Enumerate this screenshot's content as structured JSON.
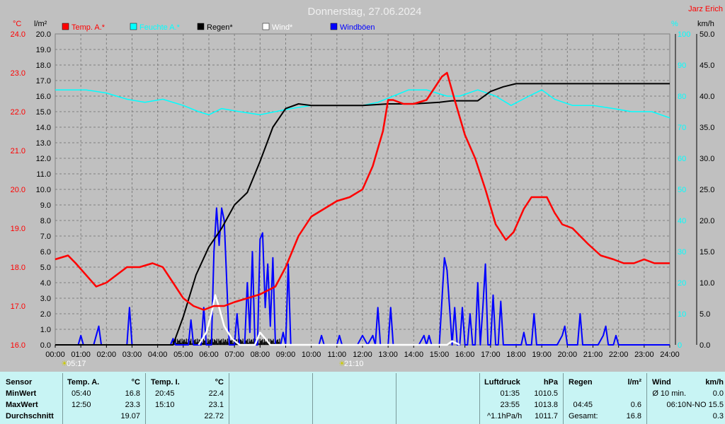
{
  "title": "Donnerstag, 27.06.2024",
  "author": "Jarz Erich",
  "units": {
    "temp": "°C",
    "rain": "l/m²",
    "wind": "km/h",
    "hum": "%"
  },
  "legend": [
    {
      "label": "Temp. A.*",
      "color": "#ff0000"
    },
    {
      "label": "Feuchte A.*",
      "color": "#00ffff"
    },
    {
      "label": "Regen*",
      "color": "#000000"
    },
    {
      "label": "Wind*",
      "color": "#ffffff"
    },
    {
      "label": "Windböen",
      "color": "#0000ff"
    }
  ],
  "sun": {
    "rise": "05:17",
    "set": "21:10"
  },
  "chart_data": {
    "type": "line",
    "title": "Donnerstag, 27.06.2024",
    "x_ticks": [
      "00:00",
      "01:00",
      "02:00",
      "03:00",
      "04:00",
      "05:00",
      "06:00",
      "07:00",
      "08:00",
      "09:00",
      "10:00",
      "11:00",
      "12:00",
      "13:00",
      "14:00",
      "15:00",
      "16:00",
      "17:00",
      "18:00",
      "19:00",
      "20:00",
      "21:00",
      "22:00",
      "23:00",
      "24:00"
    ],
    "xlim": [
      0,
      24
    ],
    "axes": {
      "temp": {
        "label": "°C",
        "range": [
          16.0,
          24.0
        ],
        "ticks": [
          "16.0",
          "17.0",
          "18.0",
          "19.0",
          "20.0",
          "21.0",
          "22.0",
          "23.0",
          "24.0"
        ]
      },
      "rain": {
        "label": "l/m²",
        "range": [
          0,
          20.0
        ],
        "ticks": [
          "0.0",
          "1.0",
          "2.0",
          "3.0",
          "4.0",
          "5.0",
          "6.0",
          "7.0",
          "8.0",
          "9.0",
          "10.0",
          "11.0",
          "12.0",
          "13.0",
          "14.0",
          "15.0",
          "16.0",
          "17.0",
          "18.0",
          "19.0",
          "20.0"
        ]
      },
      "hum": {
        "label": "%",
        "range": [
          0,
          100
        ],
        "ticks": [
          "0",
          "10",
          "20",
          "30",
          "40",
          "50",
          "60",
          "70",
          "80",
          "90",
          "100"
        ]
      },
      "wind": {
        "label": "km/h",
        "range": [
          0,
          50.0
        ],
        "ticks": [
          "0.0",
          "5.0",
          "10.0",
          "15.0",
          "20.0",
          "25.0",
          "30.0",
          "35.0",
          "40.0",
          "45.0",
          "50.0"
        ]
      }
    },
    "grid": true,
    "series": [
      {
        "name": "Temp. A.*",
        "axis": "temp",
        "color": "#ff0000",
        "points": [
          [
            0,
            18.2
          ],
          [
            0.5,
            18.3
          ],
          [
            0.8,
            18.1
          ],
          [
            1.2,
            17.8
          ],
          [
            1.6,
            17.5
          ],
          [
            2.0,
            17.6
          ],
          [
            2.4,
            17.8
          ],
          [
            2.8,
            18.0
          ],
          [
            3.3,
            18.0
          ],
          [
            3.8,
            18.1
          ],
          [
            4.2,
            18.0
          ],
          [
            4.6,
            17.6
          ],
          [
            5.0,
            17.2
          ],
          [
            5.4,
            17.0
          ],
          [
            5.8,
            16.9
          ],
          [
            6.2,
            17.0
          ],
          [
            6.6,
            17.0
          ],
          [
            7.0,
            17.1
          ],
          [
            7.5,
            17.2
          ],
          [
            8.0,
            17.3
          ],
          [
            8.6,
            17.5
          ],
          [
            9.0,
            18.0
          ],
          [
            9.5,
            18.8
          ],
          [
            10.0,
            19.3
          ],
          [
            10.5,
            19.5
          ],
          [
            11.0,
            19.7
          ],
          [
            11.5,
            19.8
          ],
          [
            12.0,
            20.0
          ],
          [
            12.4,
            20.6
          ],
          [
            12.8,
            21.5
          ],
          [
            13.0,
            22.3
          ],
          [
            13.2,
            22.3
          ],
          [
            13.6,
            22.2
          ],
          [
            14.0,
            22.2
          ],
          [
            14.5,
            22.3
          ],
          [
            14.8,
            22.6
          ],
          [
            15.1,
            22.9
          ],
          [
            15.3,
            23.0
          ],
          [
            15.6,
            22.3
          ],
          [
            16.0,
            21.4
          ],
          [
            16.4,
            20.8
          ],
          [
            16.8,
            20.0
          ],
          [
            17.2,
            19.1
          ],
          [
            17.6,
            18.7
          ],
          [
            17.9,
            18.9
          ],
          [
            18.3,
            19.5
          ],
          [
            18.6,
            19.8
          ],
          [
            19.0,
            19.8
          ],
          [
            19.2,
            19.8
          ],
          [
            19.5,
            19.4
          ],
          [
            19.8,
            19.1
          ],
          [
            20.2,
            19.0
          ],
          [
            20.8,
            18.6
          ],
          [
            21.3,
            18.3
          ],
          [
            21.8,
            18.2
          ],
          [
            22.2,
            18.1
          ],
          [
            22.6,
            18.1
          ],
          [
            23.0,
            18.2
          ],
          [
            23.4,
            18.1
          ],
          [
            24.0,
            18.1
          ]
        ]
      },
      {
        "name": "Feuchte A.*",
        "axis": "hum",
        "color": "#00ffff",
        "points": [
          [
            0,
            82
          ],
          [
            1.2,
            82
          ],
          [
            2.0,
            81
          ],
          [
            2.8,
            79
          ],
          [
            3.5,
            78
          ],
          [
            4.2,
            79
          ],
          [
            5.0,
            77
          ],
          [
            5.6,
            75
          ],
          [
            6.0,
            74
          ],
          [
            6.5,
            76
          ],
          [
            7.2,
            75
          ],
          [
            8.0,
            74
          ],
          [
            8.6,
            75
          ],
          [
            9.2,
            76
          ],
          [
            10.0,
            77
          ],
          [
            11.0,
            77
          ],
          [
            12.0,
            77
          ],
          [
            12.6,
            78
          ],
          [
            13.2,
            80
          ],
          [
            13.8,
            82
          ],
          [
            14.5,
            82
          ],
          [
            14.9,
            81
          ],
          [
            15.3,
            80
          ],
          [
            15.8,
            80
          ],
          [
            16.5,
            82
          ],
          [
            17.2,
            80
          ],
          [
            17.8,
            77
          ],
          [
            18.5,
            80
          ],
          [
            19.0,
            82
          ],
          [
            19.5,
            79
          ],
          [
            20.2,
            77
          ],
          [
            21.0,
            77
          ],
          [
            21.8,
            76
          ],
          [
            22.5,
            75
          ],
          [
            23.3,
            75
          ],
          [
            24.0,
            73
          ]
        ]
      },
      {
        "name": "Regen*",
        "axis": "rain",
        "color": "#000000",
        "points": [
          [
            0,
            0
          ],
          [
            4.6,
            0
          ],
          [
            5.0,
            1.8
          ],
          [
            5.5,
            4.5
          ],
          [
            6.0,
            6.3
          ],
          [
            6.5,
            7.5
          ],
          [
            7.0,
            9.0
          ],
          [
            7.5,
            9.8
          ],
          [
            8.0,
            11.8
          ],
          [
            8.5,
            14.0
          ],
          [
            9.0,
            15.2
          ],
          [
            9.5,
            15.5
          ],
          [
            10.0,
            15.4
          ],
          [
            11.0,
            15.4
          ],
          [
            12.0,
            15.4
          ],
          [
            13.0,
            15.5
          ],
          [
            14.0,
            15.5
          ],
          [
            15.0,
            15.6
          ],
          [
            15.5,
            15.7
          ],
          [
            16.5,
            15.7
          ],
          [
            17.0,
            16.3
          ],
          [
            17.5,
            16.6
          ],
          [
            18.0,
            16.8
          ],
          [
            24.0,
            16.8
          ]
        ]
      },
      {
        "name": "Wind*",
        "axis": "wind",
        "color": "#ffffff",
        "points": [
          [
            5.6,
            0
          ],
          [
            5.9,
            2
          ],
          [
            6.1,
            5
          ],
          [
            6.25,
            8
          ],
          [
            6.4,
            6
          ],
          [
            6.6,
            3
          ],
          [
            6.9,
            1
          ],
          [
            7.2,
            0
          ],
          [
            7.8,
            0
          ],
          [
            8.0,
            2
          ],
          [
            8.2,
            1
          ],
          [
            8.4,
            0
          ],
          [
            15.3,
            0
          ],
          [
            15.5,
            0.6
          ],
          [
            15.8,
            0
          ]
        ]
      },
      {
        "name": "Windböen",
        "axis": "wind",
        "color": "#0000ff",
        "points": [
          [
            0,
            0
          ],
          [
            0.9,
            0
          ],
          [
            1.0,
            1.5
          ],
          [
            1.1,
            0
          ],
          [
            1.5,
            0
          ],
          [
            1.6,
            1.5
          ],
          [
            1.7,
            3
          ],
          [
            1.8,
            0
          ],
          [
            2.8,
            0
          ],
          [
            2.9,
            6
          ],
          [
            3.0,
            0
          ],
          [
            4.5,
            0
          ],
          [
            4.6,
            1
          ],
          [
            4.7,
            0
          ],
          [
            5.2,
            0
          ],
          [
            5.3,
            4
          ],
          [
            5.4,
            0
          ],
          [
            5.7,
            0
          ],
          [
            5.8,
            6
          ],
          [
            5.9,
            0
          ],
          [
            6.1,
            0
          ],
          [
            6.2,
            15
          ],
          [
            6.3,
            22
          ],
          [
            6.4,
            16
          ],
          [
            6.5,
            22
          ],
          [
            6.6,
            20
          ],
          [
            6.7,
            10
          ],
          [
            6.8,
            0
          ],
          [
            7.0,
            0
          ],
          [
            7.1,
            5
          ],
          [
            7.2,
            0
          ],
          [
            7.4,
            0
          ],
          [
            7.5,
            10
          ],
          [
            7.6,
            2
          ],
          [
            7.7,
            15
          ],
          [
            7.8,
            0
          ],
          [
            7.9,
            0
          ],
          [
            8.0,
            17
          ],
          [
            8.1,
            18
          ],
          [
            8.2,
            6
          ],
          [
            8.3,
            13
          ],
          [
            8.4,
            3
          ],
          [
            8.5,
            14
          ],
          [
            8.6,
            0
          ],
          [
            8.8,
            0
          ],
          [
            8.9,
            2
          ],
          [
            9.0,
            0
          ],
          [
            9.1,
            13
          ],
          [
            9.2,
            0
          ],
          [
            10.3,
            0
          ],
          [
            10.4,
            1.5
          ],
          [
            10.5,
            0
          ],
          [
            11.0,
            0
          ],
          [
            11.1,
            1.5
          ],
          [
            11.2,
            0
          ],
          [
            11.8,
            0
          ],
          [
            12.0,
            1.5
          ],
          [
            12.2,
            0
          ],
          [
            12.4,
            1.5
          ],
          [
            12.5,
            0
          ],
          [
            12.6,
            6
          ],
          [
            12.7,
            0
          ],
          [
            13.0,
            0
          ],
          [
            13.1,
            6
          ],
          [
            13.2,
            0
          ],
          [
            14.2,
            0
          ],
          [
            14.4,
            1.5
          ],
          [
            14.5,
            0
          ],
          [
            14.6,
            1.5
          ],
          [
            14.7,
            0
          ],
          [
            15.0,
            0
          ],
          [
            15.2,
            14
          ],
          [
            15.3,
            12
          ],
          [
            15.4,
            6
          ],
          [
            15.5,
            0
          ],
          [
            15.6,
            6
          ],
          [
            15.7,
            0
          ],
          [
            15.8,
            0
          ],
          [
            15.9,
            6
          ],
          [
            16.0,
            0
          ],
          [
            16.1,
            0
          ],
          [
            16.2,
            5
          ],
          [
            16.3,
            0
          ],
          [
            16.4,
            0
          ],
          [
            16.5,
            10
          ],
          [
            16.6,
            0
          ],
          [
            16.7,
            6
          ],
          [
            16.8,
            13
          ],
          [
            16.9,
            0
          ],
          [
            17.0,
            0
          ],
          [
            17.1,
            8
          ],
          [
            17.2,
            0
          ],
          [
            17.3,
            0
          ],
          [
            17.4,
            7
          ],
          [
            17.5,
            0
          ],
          [
            18.2,
            0
          ],
          [
            18.3,
            2
          ],
          [
            18.4,
            0
          ],
          [
            18.6,
            0
          ],
          [
            18.7,
            5
          ],
          [
            18.8,
            0
          ],
          [
            19.6,
            0
          ],
          [
            19.8,
            1.5
          ],
          [
            19.9,
            3
          ],
          [
            20.0,
            0
          ],
          [
            20.4,
            0
          ],
          [
            20.5,
            5
          ],
          [
            20.6,
            0
          ],
          [
            21.2,
            0
          ],
          [
            21.4,
            1.5
          ],
          [
            21.5,
            3
          ],
          [
            21.6,
            0
          ],
          [
            21.8,
            0
          ],
          [
            21.9,
            1.5
          ],
          [
            22.0,
            0
          ],
          [
            24.0,
            0
          ]
        ]
      }
    ],
    "rain_bars": {
      "axis": "rain",
      "color": "#000000",
      "from": 4.6,
      "to": 8.8,
      "max": 0.4
    }
  },
  "stats": {
    "headers": {
      "sensor": "Sensor",
      "temp_a": "Temp. A.",
      "temp_a_unit": "°C",
      "temp_i": "Temp. I.",
      "temp_i_unit": "°C",
      "pressure": "Luftdruck",
      "pressure_unit": "hPa",
      "rain": "Regen",
      "rain_unit": "l/m²",
      "wind": "Wind",
      "wind_unit": "km/h"
    },
    "rows": [
      {
        "label": "MinWert",
        "temp_a_time": "05:40",
        "temp_a_val": "16.8",
        "temp_i_time": "20:45",
        "temp_i_val": "22.4",
        "pressure_time": "01:35",
        "pressure_val": "1010.5",
        "rain_time": "",
        "rain_val": "",
        "wind_time": "Ø 10 min.",
        "wind_val": "0.0"
      },
      {
        "label": "MaxWert",
        "temp_a_time": "12:50",
        "temp_a_val": "23.3",
        "temp_i_time": "15:10",
        "temp_i_val": "23.1",
        "pressure_time": "23:55",
        "pressure_val": "1013.8",
        "rain_time": "04:45",
        "rain_val": "0.6",
        "wind_time": "06:10",
        "wind_val": "N-NO 15.5"
      },
      {
        "label": "Durchschnitt",
        "temp_a_time": "",
        "temp_a_val": "19.07",
        "temp_i_time": "",
        "temp_i_val": "22.72",
        "pressure_time": "^1.1hPa/h",
        "pressure_val": "1011.7",
        "rain_time": "Gesamt:",
        "rain_val": "16.8",
        "wind_time": "",
        "wind_val": "0.3"
      }
    ]
  }
}
